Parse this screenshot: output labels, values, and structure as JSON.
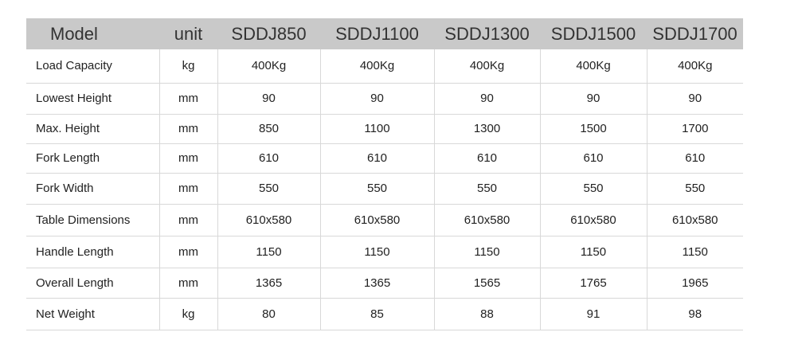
{
  "table": {
    "headers": [
      "Model",
      "unit",
      "SDDJ850",
      "SDDJ1100",
      "SDDJ1300",
      "SDDJ1500",
      "SDDJ1700"
    ],
    "rows": [
      [
        "Load Capacity",
        "kg",
        "400Kg",
        "400Kg",
        "400Kg",
        "400Kg",
        "400Kg"
      ],
      [
        "Lowest Height",
        "mm",
        "90",
        "90",
        "90",
        "90",
        "90"
      ],
      [
        "Max. Height",
        "mm",
        "850",
        "1100",
        "1300",
        "1500",
        "1700"
      ],
      [
        "Fork Length",
        "mm",
        "610",
        "610",
        "610",
        "610",
        "610"
      ],
      [
        "Fork Width",
        "mm",
        "550",
        "550",
        "550",
        "550",
        "550"
      ],
      [
        "Table Dimensions",
        "mm",
        "610x580",
        "610x580",
        "610x580",
        "610x580",
        "610x580"
      ],
      [
        "Handle Length",
        "mm",
        "1150",
        "1150",
        "1150",
        "1150",
        "1150"
      ],
      [
        "Overall Length",
        "mm",
        "1365",
        "1365",
        "1565",
        "1765",
        "1965"
      ],
      [
        "Net Weight",
        "kg",
        "80",
        "85",
        "88",
        "91",
        "98"
      ]
    ]
  },
  "colors": {
    "header_bg": "#c9c9c9",
    "grid": "#d8d8d8"
  }
}
